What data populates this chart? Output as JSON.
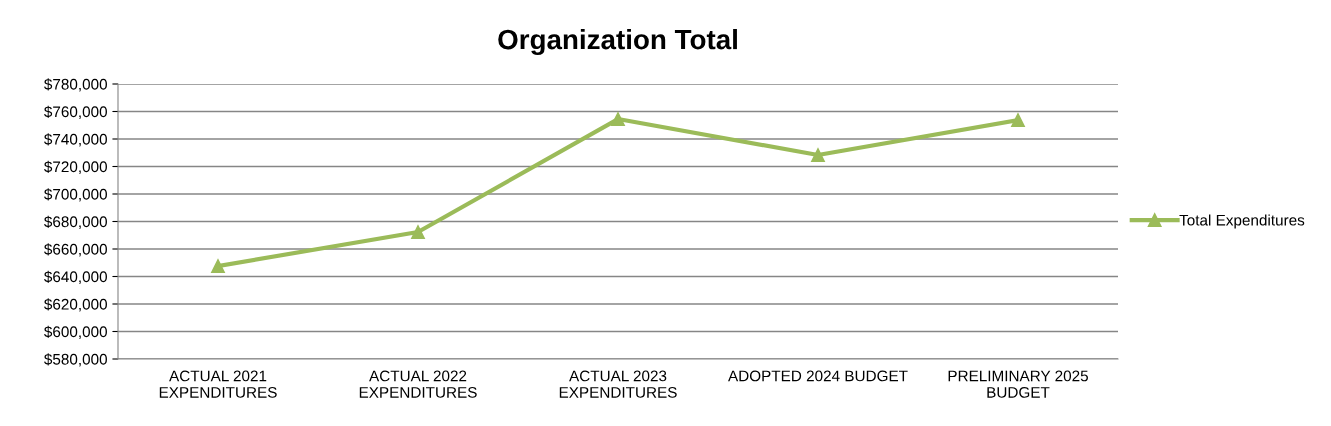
{
  "chart_data": {
    "type": "line",
    "title": "Organization Total",
    "categories": [
      "ACTUAL 2021\nEXPENDITURES",
      "ACTUAL 2022\nEXPENDITURES",
      "ACTUAL 2023\nEXPENDITURES",
      "ADOPTED 2024 BUDGET",
      "PRELIMINARY 2025\nBUDGET"
    ],
    "series": [
      {
        "name": "Total Expenditures",
        "color": "#9bbb59",
        "values": [
          647600,
          672400,
          754500,
          728400,
          753800
        ]
      }
    ],
    "ylim": [
      580000,
      780000
    ],
    "yticks": [
      {
        "value": 580000,
        "label": "$580,000"
      },
      {
        "value": 600000,
        "label": "$600,000"
      },
      {
        "value": 620000,
        "label": "$620,000"
      },
      {
        "value": 640000,
        "label": "$640,000"
      },
      {
        "value": 660000,
        "label": "$660,000"
      },
      {
        "value": 680000,
        "label": "$680,000"
      },
      {
        "value": 700000,
        "label": "$700,000"
      },
      {
        "value": 720000,
        "label": "$720,000"
      },
      {
        "value": 740000,
        "label": "$740,000"
      },
      {
        "value": 760000,
        "label": "$760,000"
      },
      {
        "value": 780000,
        "label": "$780,000"
      }
    ],
    "grid": "y",
    "legend": "right",
    "marker": "triangle",
    "line_style": "solid"
  }
}
